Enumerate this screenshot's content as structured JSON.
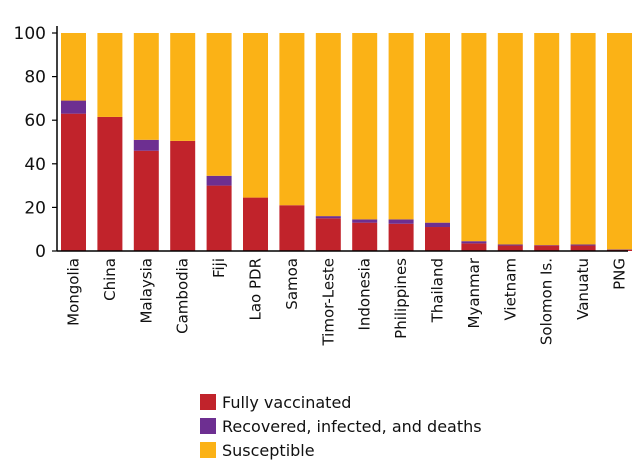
{
  "chart_data": {
    "type": "bar",
    "stacked": true,
    "categories": [
      "Mongolia",
      "China",
      "Malaysia",
      "Cambodia",
      "Fiji",
      "Lao PDR",
      "Samoa",
      "Timor-Leste",
      "Indonesia",
      "Philippines",
      "Thailand",
      "Myanmar",
      "Vietnam",
      "Solomon Is.",
      "Vanuatu",
      "PNG"
    ],
    "series": [
      {
        "name": "Fully vaccinated",
        "color": "#c1232b",
        "values": [
          63,
          61.5,
          46,
          50.5,
          30,
          24.5,
          21,
          15,
          13,
          12.5,
          11,
          3.5,
          2.5,
          2.5,
          2.5,
          0.5
        ]
      },
      {
        "name": "Recovered, infected, and deaths",
        "color": "#6d2f91",
        "values": [
          6,
          0,
          5,
          0,
          4.5,
          0,
          0,
          1,
          1.5,
          2,
          2,
          1,
          0.5,
          0.2,
          0.5,
          0.2
        ]
      },
      {
        "name": "Susceptible",
        "color": "#fbb216",
        "values": [
          31,
          38.5,
          49,
          49.5,
          65.5,
          75.5,
          79,
          84,
          85.5,
          85.5,
          87,
          95.5,
          97,
          97.3,
          97,
          99.3
        ]
      }
    ],
    "yticks": [
      0,
      20,
      40,
      60,
      80,
      100
    ],
    "ylim": [
      0,
      100
    ],
    "xlabel": "",
    "ylabel": "",
    "title": "",
    "grid": false,
    "legend_position": "bottom"
  }
}
